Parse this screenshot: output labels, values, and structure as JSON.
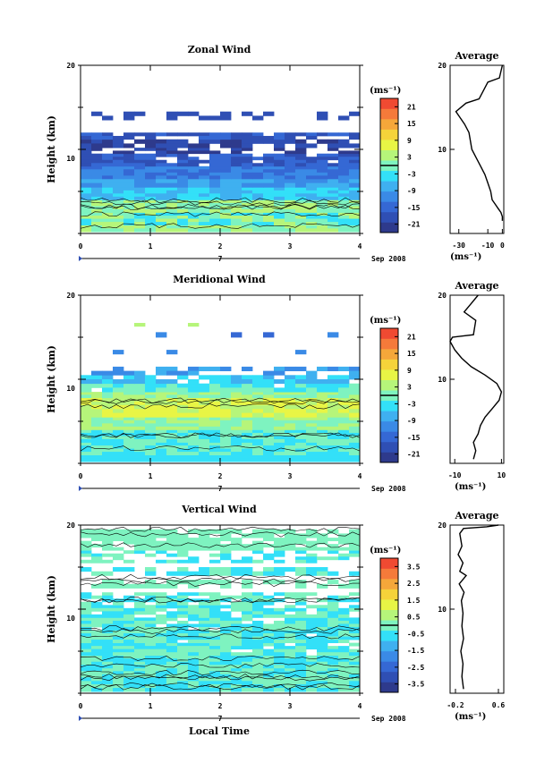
{
  "colors": {
    "scale": [
      "#2e3a8c",
      "#2f4fb4",
      "#3568d4",
      "#3a8ae6",
      "#3fb0f0",
      "#33e0f8",
      "#7ef3c0",
      "#b6f57a",
      "#e8f545",
      "#f5d33a",
      "#f5a73a",
      "#f57a3a",
      "#f04a32"
    ]
  },
  "common": {
    "xlabel": "Local Time",
    "ylabel": "Height (km)",
    "date_label": "Sep 2008",
    "marker_label": "7",
    "avg_title": "Average",
    "avg_unit": "(ms⁻¹)",
    "cb_unit": "(ms⁻¹)"
  },
  "chart_data": [
    {
      "type": "heatmap",
      "name": "zonal",
      "title": "Zonal Wind",
      "xlim": [
        0,
        4
      ],
      "xticks": [
        0,
        1,
        2,
        3,
        4
      ],
      "ylim": [
        0,
        20
      ],
      "yticks": [
        10,
        20
      ],
      "colorbar_ticks": [
        "21",
        "15",
        "9",
        "3",
        "-3",
        "-9",
        "-15",
        "-21"
      ],
      "colorbar_range": [
        -24,
        24
      ],
      "average_profile": {
        "xlim": [
          -36,
          1
        ],
        "xticks": [
          -30,
          -10,
          0
        ],
        "points": [
          [
            0,
            1.5
          ],
          [
            0,
            2
          ],
          [
            -1,
            2.5
          ],
          [
            -3,
            3
          ],
          [
            -5,
            3.5
          ],
          [
            -7,
            4
          ],
          [
            -8,
            5
          ],
          [
            -10,
            6
          ],
          [
            -12,
            7
          ],
          [
            -15,
            8
          ],
          [
            -18,
            9
          ],
          [
            -21,
            10
          ],
          [
            -22,
            11
          ],
          [
            -23,
            12
          ],
          [
            -26,
            13
          ],
          [
            -30,
            14
          ],
          [
            -32,
            14.5
          ],
          [
            -25,
            15.5
          ],
          [
            -16,
            16
          ],
          [
            -10,
            18
          ],
          [
            -2,
            18.5
          ],
          [
            0,
            20
          ]
        ]
      }
    },
    {
      "type": "heatmap",
      "name": "meridional",
      "title": "Meridional Wind",
      "xlim": [
        0,
        4
      ],
      "xticks": [
        0,
        1,
        2,
        3,
        4
      ],
      "ylim": [
        0,
        20
      ],
      "yticks": [
        10,
        20
      ],
      "colorbar_ticks": [
        "21",
        "15",
        "9",
        "3",
        "-3",
        "-9",
        "-15",
        "-21"
      ],
      "colorbar_range": [
        -24,
        24
      ],
      "average_profile": {
        "xlim": [
          -12,
          11
        ],
        "xticks": [
          -10,
          10
        ],
        "points": [
          [
            -2,
            0.5
          ],
          [
            -1,
            1.5
          ],
          [
            -2,
            2.5
          ],
          [
            0,
            3.5
          ],
          [
            1,
            4.5
          ],
          [
            3,
            5.5
          ],
          [
            6,
            6.5
          ],
          [
            9,
            7.5
          ],
          [
            10,
            8.5
          ],
          [
            8,
            9.5
          ],
          [
            3,
            10.5
          ],
          [
            -3,
            11.5
          ],
          [
            -7,
            12.5
          ],
          [
            -10,
            13.5
          ],
          [
            -12,
            14.5
          ],
          [
            -11,
            15
          ],
          [
            -2,
            15.3
          ],
          [
            -1,
            17
          ],
          [
            -6,
            18
          ],
          [
            -3,
            19
          ],
          [
            0,
            20
          ]
        ]
      }
    },
    {
      "type": "heatmap",
      "name": "vertical",
      "title": "Vertical Wind",
      "xlim": [
        0,
        4
      ],
      "xticks": [
        0,
        1,
        2,
        3,
        4
      ],
      "ylim": [
        0,
        20
      ],
      "yticks": [
        10,
        20
      ],
      "colorbar_ticks": [
        "3.5",
        "2.5",
        "1.5",
        "0.5",
        "-0.5",
        "-1.5",
        "-2.5",
        "-3.5"
      ],
      "colorbar_range": [
        -4,
        4
      ],
      "average_profile": {
        "xlim": [
          -0.3,
          0.7
        ],
        "xticks": [
          -0.2,
          0.6
        ],
        "points": [
          [
            -0.05,
            0.5
          ],
          [
            -0.08,
            2
          ],
          [
            -0.06,
            3.5
          ],
          [
            -0.1,
            5
          ],
          [
            -0.05,
            6.5
          ],
          [
            -0.08,
            8
          ],
          [
            -0.06,
            9.5
          ],
          [
            -0.09,
            11
          ],
          [
            -0.04,
            12
          ],
          [
            -0.13,
            13
          ],
          [
            0.0,
            14
          ],
          [
            -0.12,
            14.5
          ],
          [
            -0.06,
            15.5
          ],
          [
            -0.15,
            16.5
          ],
          [
            -0.08,
            17.5
          ],
          [
            -0.12,
            19
          ],
          [
            -0.05,
            19.6
          ],
          [
            0.38,
            19.8
          ],
          [
            0.6,
            20
          ]
        ]
      }
    }
  ]
}
